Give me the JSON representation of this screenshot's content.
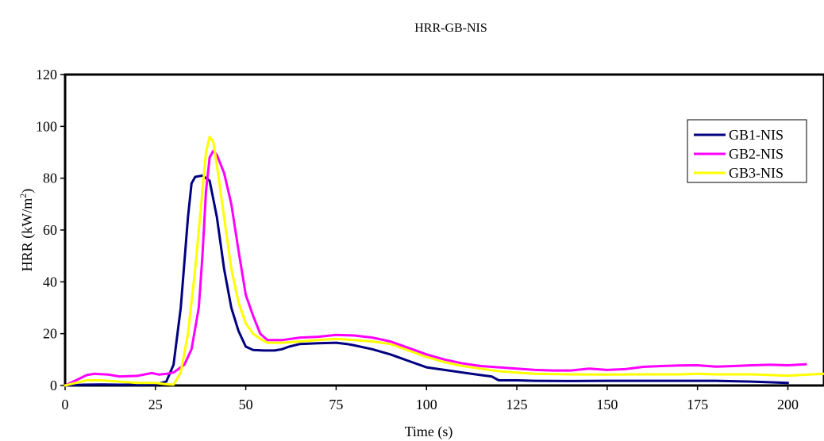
{
  "chart_data": {
    "type": "line",
    "title": "HRR-GB-NIS",
    "xlabel": "Time (s)",
    "ylabel": "HRR (kW/m",
    "ylabel_sup": "2",
    "ylabel_suffix": ")",
    "xlim": [
      0,
      210
    ],
    "ylim": [
      0,
      120
    ],
    "xticks": [
      0,
      25,
      50,
      75,
      100,
      125,
      150,
      175,
      200
    ],
    "yticks": [
      0,
      20,
      40,
      60,
      80,
      100,
      120
    ],
    "grid": false,
    "legend_position": "top-right",
    "series": [
      {
        "name": "GB1-NIS",
        "color": "#000080",
        "points": [
          [
            0,
            0
          ],
          [
            5,
            0.3
          ],
          [
            10,
            0.4
          ],
          [
            15,
            0.3
          ],
          [
            20,
            0.3
          ],
          [
            25,
            0.4
          ],
          [
            28,
            1.5
          ],
          [
            30,
            8
          ],
          [
            32,
            30
          ],
          [
            34,
            65
          ],
          [
            35,
            78
          ],
          [
            36,
            80.5
          ],
          [
            38,
            81
          ],
          [
            40,
            79
          ],
          [
            42,
            65
          ],
          [
            44,
            45
          ],
          [
            46,
            30
          ],
          [
            48,
            21
          ],
          [
            50,
            15
          ],
          [
            52,
            13.7
          ],
          [
            55,
            13.5
          ],
          [
            58,
            13.5
          ],
          [
            60,
            14
          ],
          [
            62,
            15
          ],
          [
            65,
            16
          ],
          [
            70,
            16.3
          ],
          [
            75,
            16.5
          ],
          [
            78,
            16
          ],
          [
            80,
            15.5
          ],
          [
            85,
            14
          ],
          [
            90,
            12
          ],
          [
            95,
            9.5
          ],
          [
            100,
            7
          ],
          [
            105,
            6
          ],
          [
            110,
            5
          ],
          [
            115,
            4
          ],
          [
            118,
            3.5
          ],
          [
            120,
            2
          ],
          [
            125,
            2
          ],
          [
            130,
            1.8
          ],
          [
            140,
            1.7
          ],
          [
            150,
            1.8
          ],
          [
            160,
            1.8
          ],
          [
            170,
            1.8
          ],
          [
            180,
            1.8
          ],
          [
            190,
            1.5
          ],
          [
            200,
            1
          ]
        ]
      },
      {
        "name": "GB2-NIS",
        "color": "#ff00ff",
        "points": [
          [
            0,
            0
          ],
          [
            3,
            2
          ],
          [
            6,
            4
          ],
          [
            8,
            4.5
          ],
          [
            12,
            4.2
          ],
          [
            15,
            3.5
          ],
          [
            20,
            3.7
          ],
          [
            24,
            4.8
          ],
          [
            26,
            4.2
          ],
          [
            28,
            4.5
          ],
          [
            30,
            5
          ],
          [
            33,
            8
          ],
          [
            35,
            14
          ],
          [
            37,
            30
          ],
          [
            38,
            50
          ],
          [
            39,
            75
          ],
          [
            40,
            88
          ],
          [
            41,
            90.5
          ],
          [
            42,
            89
          ],
          [
            44,
            82
          ],
          [
            46,
            70
          ],
          [
            48,
            52
          ],
          [
            50,
            35
          ],
          [
            52,
            27
          ],
          [
            54,
            20
          ],
          [
            56,
            17.5
          ],
          [
            60,
            17.5
          ],
          [
            65,
            18.5
          ],
          [
            70,
            18.8
          ],
          [
            75,
            19.5
          ],
          [
            80,
            19.3
          ],
          [
            85,
            18.5
          ],
          [
            90,
            17
          ],
          [
            95,
            14.5
          ],
          [
            100,
            12
          ],
          [
            105,
            10
          ],
          [
            110,
            8.5
          ],
          [
            115,
            7.5
          ],
          [
            120,
            7
          ],
          [
            125,
            6.5
          ],
          [
            130,
            6
          ],
          [
            135,
            5.8
          ],
          [
            140,
            5.8
          ],
          [
            145,
            6.5
          ],
          [
            150,
            6
          ],
          [
            155,
            6.3
          ],
          [
            160,
            7.2
          ],
          [
            165,
            7.5
          ],
          [
            170,
            7.7
          ],
          [
            175,
            7.8
          ],
          [
            180,
            7.3
          ],
          [
            185,
            7.5
          ],
          [
            190,
            7.8
          ],
          [
            195,
            8
          ],
          [
            200,
            7.8
          ],
          [
            205,
            8.2
          ]
        ]
      },
      {
        "name": "GB3-NIS",
        "color": "#ffff00",
        "points": [
          [
            0,
            0
          ],
          [
            3,
            1
          ],
          [
            6,
            2
          ],
          [
            10,
            2
          ],
          [
            15,
            1.5
          ],
          [
            20,
            1
          ],
          [
            25,
            1
          ],
          [
            28,
            0.5
          ],
          [
            30,
            0.3
          ],
          [
            32,
            5
          ],
          [
            34,
            20
          ],
          [
            36,
            45
          ],
          [
            38,
            75
          ],
          [
            39,
            90
          ],
          [
            40,
            96
          ],
          [
            41,
            94
          ],
          [
            42,
            85
          ],
          [
            44,
            65
          ],
          [
            46,
            45
          ],
          [
            48,
            32
          ],
          [
            50,
            24
          ],
          [
            52,
            20
          ],
          [
            54,
            18
          ],
          [
            56,
            16.5
          ],
          [
            60,
            16.5
          ],
          [
            65,
            17
          ],
          [
            70,
            17.5
          ],
          [
            75,
            18
          ],
          [
            80,
            17.5
          ],
          [
            85,
            17
          ],
          [
            90,
            16
          ],
          [
            95,
            13.5
          ],
          [
            100,
            11
          ],
          [
            105,
            9
          ],
          [
            110,
            7.5
          ],
          [
            115,
            6.5
          ],
          [
            120,
            5.5
          ],
          [
            125,
            5
          ],
          [
            130,
            4.5
          ],
          [
            140,
            4.3
          ],
          [
            150,
            4.2
          ],
          [
            160,
            4.3
          ],
          [
            170,
            4.3
          ],
          [
            175,
            4.5
          ],
          [
            180,
            4.3
          ],
          [
            190,
            4.3
          ],
          [
            200,
            3.8
          ],
          [
            210,
            4.5
          ]
        ]
      }
    ]
  }
}
